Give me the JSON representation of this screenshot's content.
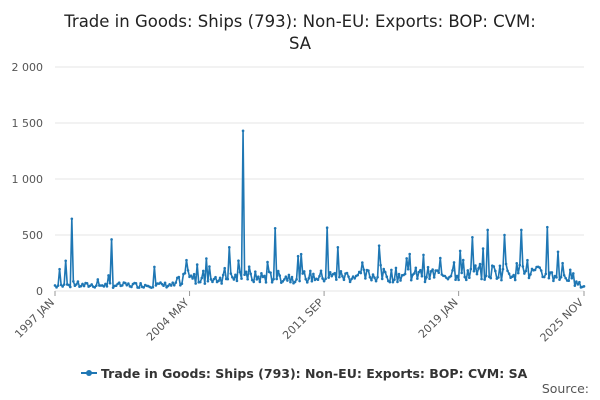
{
  "chart_data": {
    "type": "line",
    "title_lines": [
      "Trade in Goods: Ships (793): Non-EU: Exports: BOP: CVM:",
      "SA"
    ],
    "series": [
      {
        "name": "Trade in Goods: Ships (793): Non-EU: Exports: BOP: CVM: SA",
        "color": "#1f77b4",
        "spikes": [
          {
            "date": "1997-04",
            "value": 195
          },
          {
            "date": "1997-08",
            "value": 270
          },
          {
            "date": "1997-12",
            "value": 645
          },
          {
            "date": "2000-02",
            "value": 460
          },
          {
            "date": "2002-06",
            "value": 215
          },
          {
            "date": "2004-03",
            "value": 275
          },
          {
            "date": "2005-04",
            "value": 290
          },
          {
            "date": "2006-07",
            "value": 390
          },
          {
            "date": "2007-04",
            "value": 1430
          },
          {
            "date": "2009-01",
            "value": 560
          },
          {
            "date": "2011-11",
            "value": 565
          },
          {
            "date": "2012-06",
            "value": 390
          },
          {
            "date": "2014-09",
            "value": 405
          },
          {
            "date": "2016-05",
            "value": 330
          },
          {
            "date": "2018-10",
            "value": 255
          },
          {
            "date": "2019-10",
            "value": 480
          },
          {
            "date": "2020-08",
            "value": 545
          },
          {
            "date": "2021-07",
            "value": 500
          },
          {
            "date": "2022-06",
            "value": 545
          },
          {
            "date": "2023-11",
            "value": 570
          },
          {
            "date": "2024-06",
            "value": 350
          }
        ],
        "baseline": [
          {
            "date": "1997-01",
            "value": 50
          },
          {
            "date": "2003-12",
            "value": 55
          },
          {
            "date": "2004-01",
            "value": 110
          },
          {
            "date": "2007-01",
            "value": 120
          },
          {
            "date": "2011-12",
            "value": 130
          },
          {
            "date": "2017-12",
            "value": 150
          },
          {
            "date": "2019-01",
            "value": 160
          },
          {
            "date": "2022-01",
            "value": 180
          },
          {
            "date": "2024-06",
            "value": 130
          },
          {
            "date": "2025-11",
            "value": 40
          }
        ]
      }
    ],
    "x_ticks": [
      {
        "label": "1997 JAN",
        "date": "1997-01"
      },
      {
        "label": "2004 MAY",
        "date": "2004-05"
      },
      {
        "label": "2011 SEP",
        "date": "2011-09"
      },
      {
        "label": "2019 JAN",
        "date": "2019-01"
      },
      {
        "label": "2025 NOV",
        "date": "2025-11"
      }
    ],
    "y_ticks": [
      {
        "label": "0",
        "value": 0
      },
      {
        "label": "500",
        "value": 500
      },
      {
        "label": "1 000",
        "value": 1000
      },
      {
        "label": "1 500",
        "value": 1500
      },
      {
        "label": "2 000",
        "value": 2000
      }
    ],
    "xlim": [
      "1997-01",
      "2025-11"
    ],
    "ylim": [
      0,
      2000
    ],
    "grid": true,
    "legend_position": "bottom",
    "source_label": "Source:"
  }
}
